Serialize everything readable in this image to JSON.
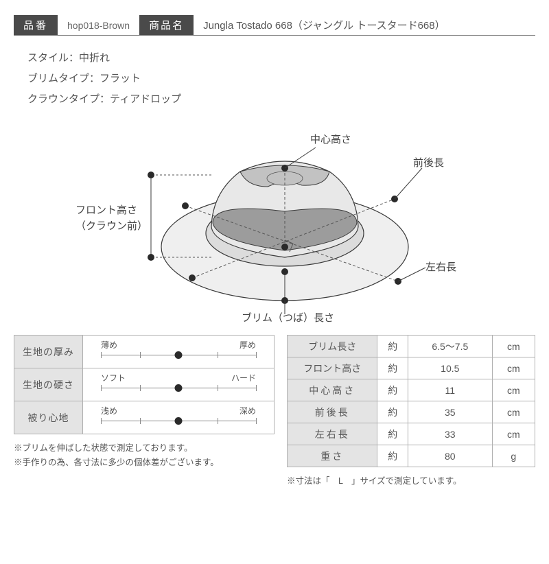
{
  "header": {
    "code_label": "品番",
    "code_value": "hop018-Brown",
    "name_label": "商品名",
    "name_value": "Jungla Tostado 668（ジャングル トースタード668）"
  },
  "specs": [
    "スタイル：中折れ",
    "ブリムタイプ：フラット",
    "クラウンタイプ：ティアドロップ"
  ],
  "diagram": {
    "labels": {
      "center_height": "中心高さ",
      "front_back": "前後長",
      "left_right": "左右長",
      "brim": "ブリム（つば）長さ",
      "front_height1": "フロント高さ",
      "front_height2": "（クラウン前）"
    },
    "colors": {
      "crown_top": "#e8e8e8",
      "crown_dent": "#c2c2c2",
      "band": "#9c9c9c",
      "brim": "#efefef",
      "brim_inner": "#dcdcdc",
      "line": "#3a3a3a",
      "dash": "#555555"
    }
  },
  "sliders": [
    {
      "label": "生地の厚み",
      "left": "薄め",
      "right": "厚め",
      "value": 0.5
    },
    {
      "label": "生地の硬さ",
      "left": "ソフト",
      "right": "ハード",
      "value": 0.5
    },
    {
      "label": "被り心地",
      "left": "浅め",
      "right": "深め",
      "value": 0.5
    }
  ],
  "slider_ticks": [
    0,
    0.25,
    0.5,
    0.75,
    1.0
  ],
  "measurements": [
    {
      "label": "ブリム長さ",
      "tight": true,
      "approx": "約",
      "value": "6.5～7.5",
      "unit": "cm"
    },
    {
      "label": "フロント高さ",
      "tight": true,
      "approx": "約",
      "value": "10.5",
      "unit": "cm"
    },
    {
      "label": "中心高さ",
      "tight": false,
      "approx": "約",
      "value": "11",
      "unit": "cm"
    },
    {
      "label": "前後長",
      "tight": false,
      "approx": "約",
      "value": "35",
      "unit": "cm"
    },
    {
      "label": "左右長",
      "tight": false,
      "approx": "約",
      "value": "33",
      "unit": "cm"
    },
    {
      "label": "重さ",
      "tight": false,
      "approx": "約",
      "value": "80",
      "unit": "g"
    }
  ],
  "notes": {
    "left1": "※ブリムを伸ばした状態で測定しております。",
    "left2": "※手作りの為、各寸法に多少の個体差がございます。",
    "right": "※寸法は「　L　」サイズで測定しています。"
  }
}
